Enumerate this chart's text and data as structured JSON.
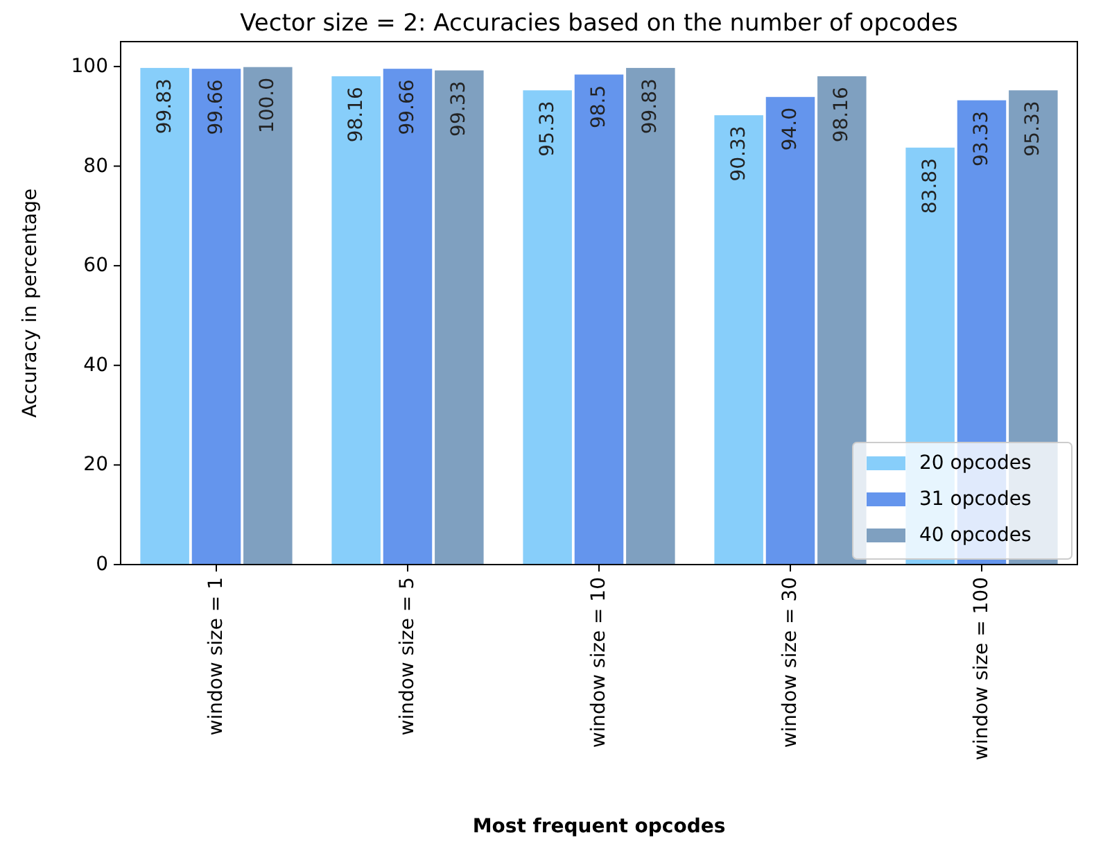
{
  "chart_data": {
    "type": "bar",
    "title": "Vector size = 2: Accuracies based on the number of opcodes",
    "xlabel": "Most frequent opcodes",
    "ylabel": "Accuracy in percentage",
    "categories": [
      "window size = 1",
      "window size = 5",
      "window size = 10",
      "window size = 30",
      "window size = 100"
    ],
    "series": [
      {
        "name": "20 opcodes",
        "color": "#87cefa",
        "values": [
          99.83,
          98.16,
          95.33,
          90.33,
          83.83
        ]
      },
      {
        "name": "31 opcodes",
        "color": "#6495ed",
        "values": [
          99.66,
          99.66,
          98.5,
          94.0,
          93.33
        ]
      },
      {
        "name": "40 opcodes",
        "color": "#7fa0c0",
        "values": [
          100.0,
          99.33,
          99.83,
          98.16,
          95.33
        ]
      }
    ],
    "value_labels": [
      [
        "99.83",
        "98.16",
        "95.33",
        "90.33",
        "83.83"
      ],
      [
        "99.66",
        "99.66",
        "98.5",
        "94.0",
        "93.33"
      ],
      [
        "100.0",
        "99.33",
        "99.83",
        "98.16",
        "95.33"
      ]
    ],
    "ylim": [
      0,
      105
    ],
    "yticks": [
      0,
      20,
      40,
      60,
      80,
      100
    ],
    "grid": false,
    "legend": "bottom right"
  }
}
